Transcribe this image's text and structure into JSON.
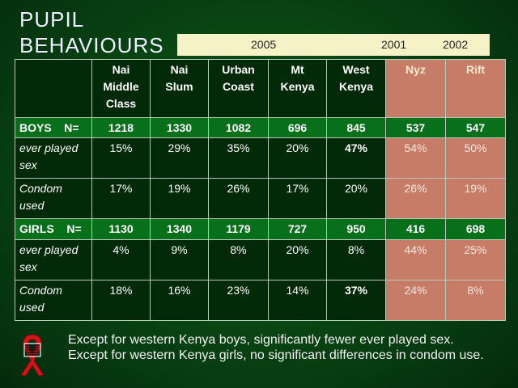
{
  "title": [
    "PUPIL",
    "BEHAVIOURS"
  ],
  "years": [
    "2005",
    "2001",
    "2002"
  ],
  "columns": [
    [
      "Nai",
      "Middle",
      "Class"
    ],
    [
      "Nai",
      "Slum"
    ],
    [
      "Urban",
      "Coast"
    ],
    [
      "Mt",
      "Kenya"
    ],
    [
      "West",
      "Kenya"
    ],
    [
      "Nyz"
    ],
    [
      "Rift"
    ]
  ],
  "rows": [
    {
      "label": [
        "BOYS    N="
      ],
      "cells": [
        "1218",
        "1330",
        "1082",
        "696",
        "845",
        "537",
        "547"
      ]
    },
    {
      "label": [
        "ever played",
        "sex"
      ],
      "cells": [
        "15%",
        "29%",
        "35%",
        "20%",
        "47%",
        "54%",
        "50%"
      ]
    },
    {
      "label": [
        "Condom",
        "used"
      ],
      "cells": [
        "17%",
        "19%",
        "26%",
        "17%",
        "20%",
        "26%",
        "19%"
      ]
    },
    {
      "label": [
        "GIRLS    N="
      ],
      "cells": [
        "1130",
        "1340",
        "1179",
        "727",
        "950",
        "416",
        "698"
      ]
    },
    {
      "label": [
        "ever played",
        "sex"
      ],
      "cells": [
        "4%",
        "9%",
        "8%",
        "20%",
        "8%",
        "44%",
        "25%"
      ]
    },
    {
      "label": [
        "Condom",
        "used"
      ],
      "cells": [
        "18%",
        "16%",
        "23%",
        "14%",
        "37%",
        "24%",
        "8%"
      ]
    }
  ],
  "footnote": [
    "Except for western Kenya boys, significantly fewer ever played sex.",
    "Except for western Kenya girls, no significant differences in condom use."
  ],
  "icon": "red-ribbon-icon",
  "colors": {
    "background": "#0a4714",
    "count_row": "#08701a",
    "comparison_cols": "#c67c66",
    "year_bar": "#f5f2c8"
  }
}
